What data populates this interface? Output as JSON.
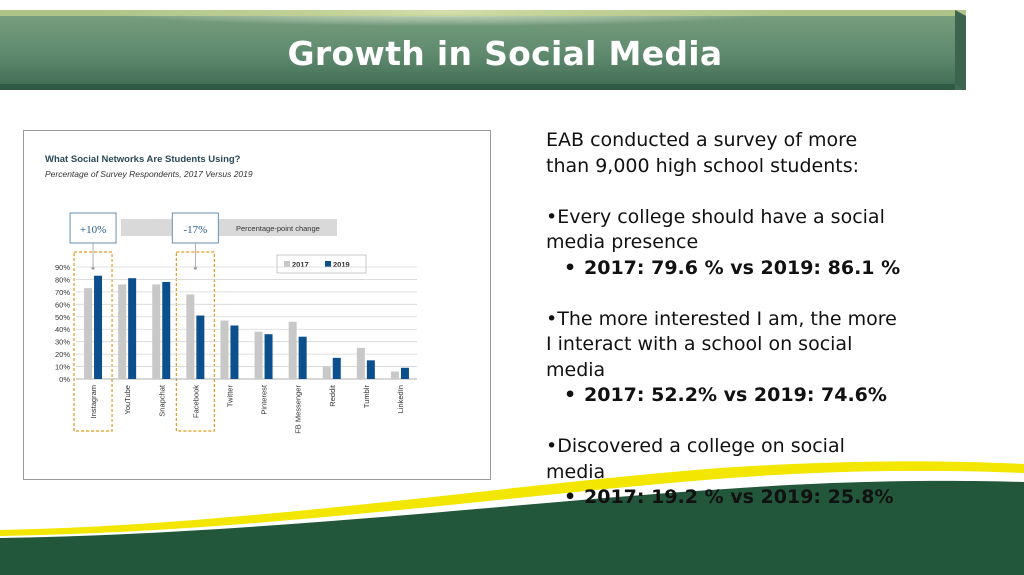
{
  "slide": {
    "title": "Growth in Social Media",
    "colors": {
      "banner_green": "#5f8a6e",
      "dark_green": "#22573c",
      "yellow": "#f3e600"
    }
  },
  "right_text": {
    "intro": "EAB conducted a survey of more than 9,000 high school students:",
    "points": [
      {
        "text": "•Every college should have a social media presence",
        "sub": "2017: 79.6 %  vs 2019: 86.1 %"
      },
      {
        "text": "•The more interested I am, the more I interact with a school on social media",
        "sub": "2017: 52.2%  vs 2019: 74.6%"
      },
      {
        "text": "•Discovered a college on social media",
        "sub": "2017: 19.2 % vs 2019: 25.8%"
      }
    ],
    "sub_bullet": "•"
  },
  "chart_data": {
    "type": "bar",
    "title": "What Social Networks Are Students Using?",
    "subtitle": "Percentage of Survey Respondents, 2017 Versus 2019",
    "categories": [
      "Instagram",
      "YouTube",
      "Snapchat",
      "Facebook",
      "Twitter",
      "Pinterest",
      "FB Messenger",
      "Reddit",
      "Tumblr",
      "LinkedIn"
    ],
    "series": [
      {
        "name": "2017",
        "color": "#c8c8c8",
        "values": [
          73,
          76,
          76,
          68,
          47,
          38,
          46,
          10,
          25,
          6
        ]
      },
      {
        "name": "2019",
        "color": "#0b4f8c",
        "values": [
          83,
          81,
          78,
          51,
          43,
          36,
          34,
          17,
          15,
          9
        ]
      }
    ],
    "ylim": [
      0,
      90
    ],
    "yticks": [
      "0%",
      "10%",
      "20%",
      "30%",
      "40%",
      "50%",
      "60%",
      "70%",
      "80%",
      "90%"
    ],
    "grid": true,
    "legend_position": "top-right",
    "callouts": [
      {
        "label": "+10%",
        "category": "Instagram"
      },
      {
        "label": "-17%",
        "category": "Facebook"
      }
    ],
    "callout_caption": "Percentage-point change"
  }
}
